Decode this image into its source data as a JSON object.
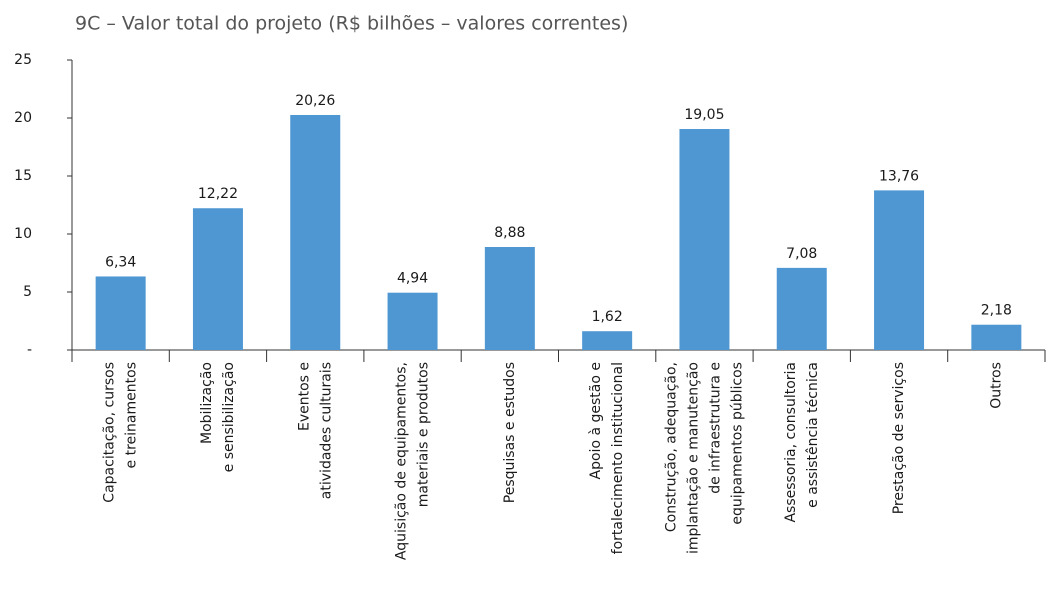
{
  "chart_data": {
    "type": "bar",
    "title": "9C – Valor total do projeto (R$ bilhões – valores correntes)",
    "categories": [
      [
        "Capacitação, cursos",
        "e treinamentos"
      ],
      [
        "Mobilização",
        "e sensibilização"
      ],
      [
        "Eventos e",
        "atividades culturais"
      ],
      [
        "Aquisição de equipamentos,",
        "materiais e produtos"
      ],
      [
        "Pesquisas e estudos"
      ],
      [
        "Apoio à gestão e",
        "fortalecimento institucional"
      ],
      [
        "Construção, adequação,",
        "implantação e manutenção",
        "de infraestrutura e",
        "equipamentos públicos"
      ],
      [
        "Assessoria, consultoria",
        "e assistência técnica"
      ],
      [
        "Prestação de serviços"
      ],
      [
        "Outros"
      ]
    ],
    "values": [
      6.34,
      12.22,
      20.26,
      4.94,
      8.88,
      1.62,
      19.05,
      7.08,
      13.76,
      2.18
    ],
    "value_labels": [
      "6,34",
      "12,22",
      "20,26",
      "4,94",
      "8,88",
      "1,62",
      "19,05",
      "7,08",
      "13,76",
      "2,18"
    ],
    "color": "#4f97d3",
    "ylim": [
      0,
      25
    ],
    "yticks": [
      {
        "value": 0,
        "label": "-"
      },
      5,
      10,
      15,
      20,
      25
    ]
  }
}
